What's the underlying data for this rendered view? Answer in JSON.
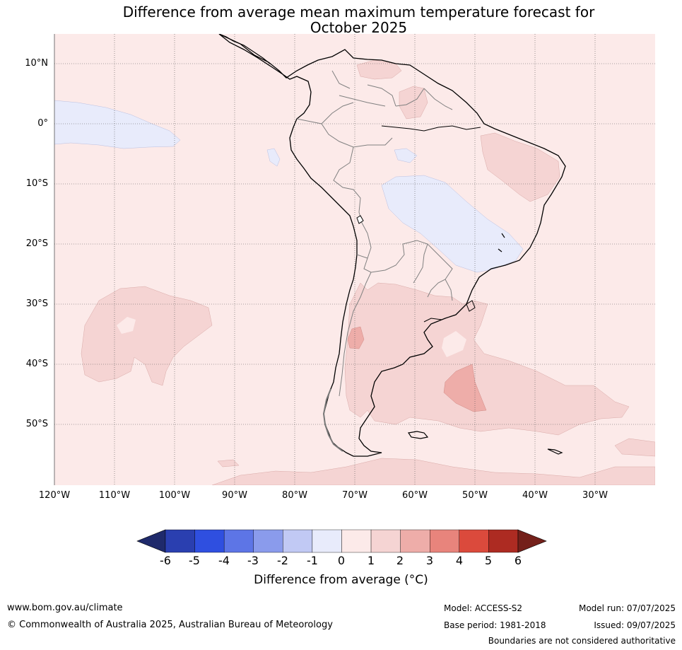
{
  "title_line1": "Difference from average mean maximum temperature forecast for",
  "title_line2": "October 2025",
  "map": {
    "lat_labels": [
      "10°N",
      "0°",
      "10°S",
      "20°S",
      "30°S",
      "40°S",
      "50°S"
    ],
    "lon_labels": [
      "120°W",
      "110°W",
      "100°W",
      "90°W",
      "80°W",
      "70°W",
      "60°W",
      "50°W",
      "40°W",
      "30°W"
    ],
    "background_color": "#fceae9"
  },
  "legend": {
    "title": "Difference from average (°C)",
    "tick_labels": [
      "-6",
      "-5",
      "-4",
      "-3",
      "-2",
      "-1",
      "0",
      "1",
      "2",
      "3",
      "4",
      "5",
      "6"
    ],
    "colors": [
      "#1f2a6b",
      "#2a3fb0",
      "#2f4fe0",
      "#5d75e6",
      "#8a9bec",
      "#c1c9f4",
      "#e8ebfb",
      "#fceae9",
      "#f5d4d3",
      "#eeada9",
      "#e8847c",
      "#db4a3c",
      "#ad2b22",
      "#74201a"
    ]
  },
  "footer": {
    "website": "www.bom.gov.au/climate",
    "copyright": "© Commonwealth of Australia 2025, Australian Bureau of Meteorology",
    "model": "Model: ACCESS-S2",
    "base_period": "Base period: 1981-2018",
    "model_run": "Model run: 07/07/2025",
    "issued": "Issued: 09/07/2025",
    "disclaimer": "Boundaries are not considered authoritative"
  }
}
